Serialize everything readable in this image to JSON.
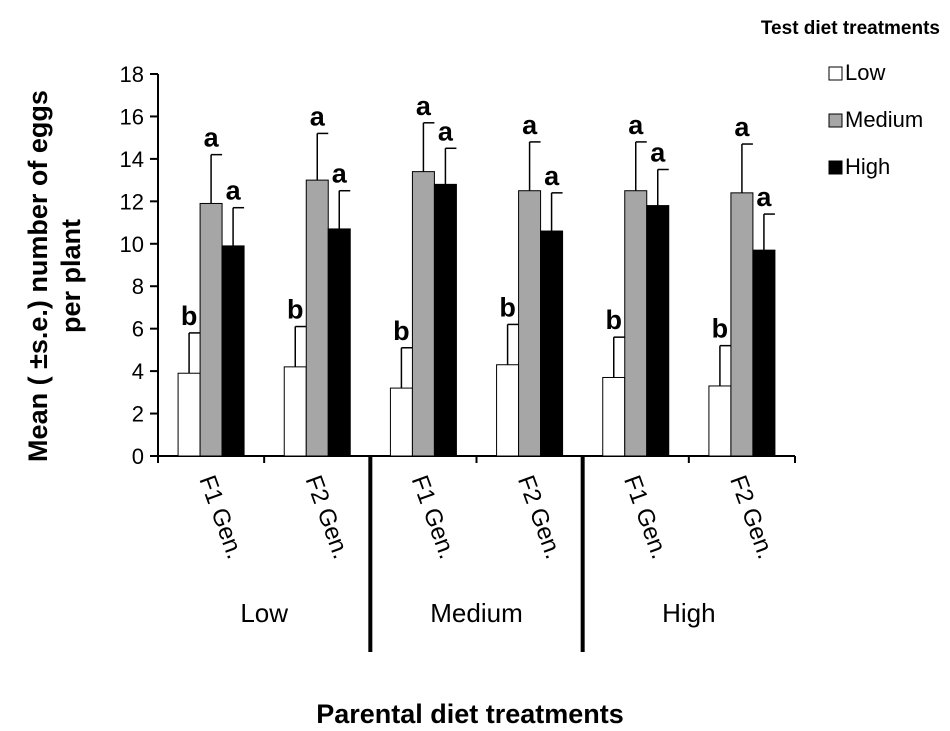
{
  "chart_data": {
    "type": "bar",
    "title": "",
    "xlabel": "Parental diet treatments",
    "ylabel": "Mean ( ±s.e.) number of eggs per plant",
    "ylabel_lines": [
      "Mean ( ±s.e.) number of eggs",
      "per plant"
    ],
    "ylim": [
      0,
      18
    ],
    "yticks": [
      0,
      2,
      4,
      6,
      8,
      10,
      12,
      14,
      16,
      18
    ],
    "grid": false,
    "legend": {
      "title": "Test diet treatments",
      "position": "top-right"
    },
    "groups": [
      "Low",
      "Medium",
      "High"
    ],
    "categories": [
      "F1 Gen.",
      "F2 Gen.",
      "F1 Gen.",
      "F2 Gen.",
      "F1 Gen.",
      "F2 Gen."
    ],
    "series": [
      {
        "name": "Low",
        "color": "#ffffff",
        "values": [
          3.9,
          4.2,
          3.2,
          4.3,
          3.7,
          3.3
        ],
        "errors": [
          1.9,
          1.9,
          1.9,
          1.9,
          1.9,
          1.9
        ],
        "letters": [
          "b",
          "b",
          "b",
          "b",
          "b",
          "b"
        ]
      },
      {
        "name": "Medium",
        "color": "#a6a6a6",
        "values": [
          11.9,
          13.0,
          13.4,
          12.5,
          12.5,
          12.4
        ],
        "errors": [
          2.3,
          2.2,
          2.3,
          2.3,
          2.3,
          2.3
        ],
        "letters": [
          "a",
          "a",
          "a",
          "a",
          "a",
          "a"
        ]
      },
      {
        "name": "High",
        "color": "#000000",
        "values": [
          9.9,
          10.7,
          12.8,
          10.6,
          11.8,
          9.7
        ],
        "errors": [
          1.8,
          1.8,
          1.7,
          1.8,
          1.7,
          1.7
        ],
        "letters": [
          "a",
          "a",
          "a",
          "a",
          "a",
          "a"
        ]
      }
    ]
  }
}
